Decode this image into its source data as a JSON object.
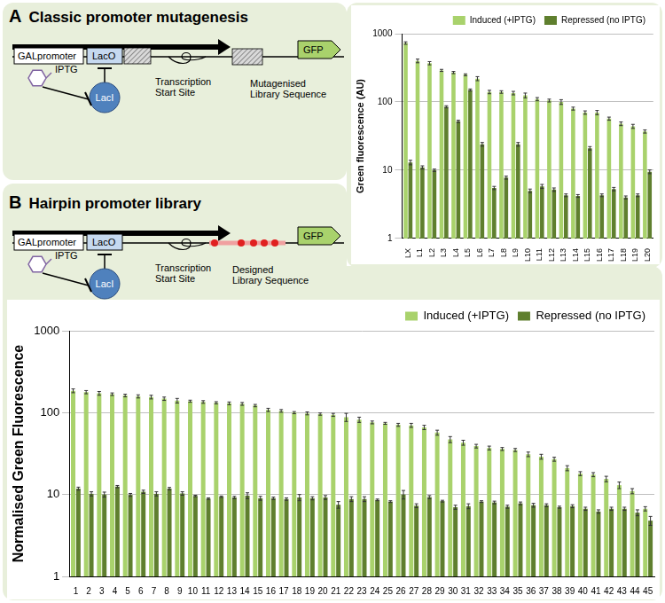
{
  "chart_data": [
    {
      "type": "bar",
      "y_label": "Green fluorescence (AU)",
      "categories": [
        "LX",
        "L1",
        "L2",
        "L3",
        "L4",
        "L5",
        "L6",
        "L7",
        "L8",
        "L9",
        "L10",
        "L11",
        "L12",
        "L13",
        "L14",
        "L15",
        "L16",
        "L17",
        "L18",
        "L19",
        "L20"
      ],
      "series": [
        {
          "name": "Induced (+IPTG)",
          "color": "#a9d26c",
          "values": [
            730,
            400,
            370,
            290,
            270,
            250,
            220,
            140,
            140,
            135,
            125,
            110,
            105,
            100,
            80,
            70,
            70,
            57,
            48,
            44,
            37
          ],
          "errors": [
            30,
            25,
            20,
            10,
            10,
            8,
            15,
            8,
            6,
            8,
            10,
            6,
            5,
            8,
            4,
            4,
            5,
            3,
            3,
            3,
            2
          ]
        },
        {
          "name": "Repressed (no IPTG)",
          "color": "#5f7f2e",
          "values": [
            13,
            11,
            10,
            85,
            52,
            150,
            24,
            5.5,
            7.8,
            24,
            5,
            5.8,
            5.2,
            4.3,
            4.2,
            21,
            4.3,
            5.3,
            4,
            4.3,
            9.5
          ],
          "errors": [
            1,
            0.6,
            0.4,
            3,
            2,
            5,
            1.5,
            0.3,
            0.4,
            1.5,
            0.3,
            0.4,
            0.3,
            0.2,
            0.2,
            1.2,
            0.2,
            0.3,
            0.2,
            0.2,
            0.6
          ]
        }
      ],
      "ylim": [
        1,
        1000
      ],
      "yticks": [
        1,
        10,
        100,
        1000
      ],
      "log": "y",
      "grid": true,
      "legend": "top-right"
    },
    {
      "type": "bar",
      "y_label": "Normalised Green Fluorescence",
      "categories": [
        "1",
        "2",
        "3",
        "4",
        "5",
        "6",
        "7",
        "8",
        "9",
        "10",
        "11",
        "12",
        "13",
        "14",
        "15",
        "16",
        "17",
        "18",
        "19",
        "20",
        "21",
        "22",
        "23",
        "24",
        "25",
        "26",
        "27",
        "28",
        "29",
        "30",
        "31",
        "32",
        "33",
        "34",
        "35",
        "36",
        "37",
        "38",
        "39",
        "40",
        "41",
        "42",
        "43",
        "44",
        "45"
      ],
      "series": [
        {
          "name": "Induced (+IPTG)",
          "color": "#a9d26c",
          "values": [
            185,
            178,
            172,
            168,
            162,
            158,
            155,
            148,
            140,
            138,
            135,
            132,
            130,
            128,
            122,
            108,
            105,
            100,
            98,
            96,
            94,
            88,
            82,
            76,
            74,
            71,
            70,
            66,
            57,
            47,
            43,
            39,
            37,
            36,
            35,
            31,
            29,
            27,
            21,
            18,
            17.5,
            15.5,
            13,
            11,
            6.7
          ],
          "errors": [
            10,
            8,
            9,
            6,
            6,
            7,
            8,
            7,
            9,
            4,
            5,
            4,
            5,
            5,
            4,
            5,
            4,
            3,
            4,
            3,
            4,
            10,
            6,
            3,
            2,
            3,
            4,
            4,
            4,
            4,
            3,
            2,
            2,
            1.5,
            1.5,
            2,
            2,
            1.5,
            1.5,
            1,
            1,
            1.2,
            1.2,
            0.8,
            0.4
          ]
        },
        {
          "name": "Repressed (no IPTG)",
          "color": "#5f7f2e",
          "values": [
            11.8,
            10.2,
            10,
            12.5,
            9.9,
            10.8,
            10.2,
            11.8,
            10.3,
            9.6,
            8.9,
            9.4,
            9.2,
            9.7,
            9,
            9,
            8.8,
            9.2,
            9,
            9.2,
            7.5,
            8.8,
            8.8,
            8.6,
            8.2,
            10,
            7.3,
            9.3,
            8.3,
            7,
            7.2,
            8.2,
            8,
            7.1,
            7.8,
            7.4,
            7.4,
            7,
            7.2,
            6.7,
            6.2,
            6.7,
            6.7,
            6,
            4.8
          ],
          "errors": [
            0.5,
            0.6,
            0.7,
            0.4,
            0.4,
            0.5,
            0.6,
            0.4,
            0.5,
            0.2,
            0.2,
            0.2,
            0.3,
            0.8,
            0.5,
            0.3,
            0.3,
            0.8,
            0.4,
            0.5,
            0.7,
            0.6,
            0.6,
            0.2,
            0.2,
            1.2,
            0.4,
            0.4,
            0.2,
            0.4,
            0.5,
            0.2,
            0.3,
            0.3,
            0.3,
            0.4,
            0.3,
            0.2,
            0.3,
            0.3,
            0.3,
            0.3,
            0.3,
            0.5,
            0.6
          ]
        }
      ],
      "ylim": [
        1,
        1000
      ],
      "yticks": [
        1,
        10,
        100,
        1000
      ],
      "log": "y",
      "grid": true,
      "legend": "top-right"
    }
  ],
  "diagrams": [
    {
      "label": "A",
      "title": "Classic promoter mutagenesis",
      "promoter": "GALpromoter",
      "operator": "LacO",
      "inducer": "IPTG",
      "repressor": "LacI",
      "tss": "Transcription Start Site",
      "library": "Mutagenised Library Sequence",
      "reporter": "GFP"
    },
    {
      "label": "B",
      "title": "Hairpin promoter library",
      "promoter": "GALpromoter",
      "operator": "LacO",
      "inducer": "IPTG",
      "repressor": "LacI",
      "tss": "Transcription Start Site",
      "library": "Designed Library Sequence",
      "reporter": "GFP"
    }
  ]
}
